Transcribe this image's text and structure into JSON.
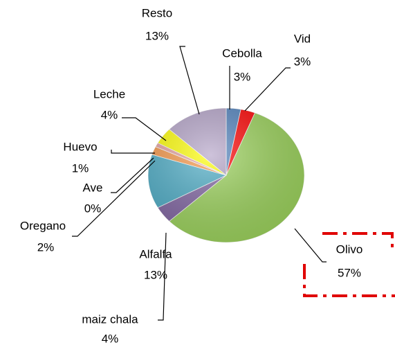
{
  "chart_data": {
    "type": "pie",
    "categories": [
      "Cebolla",
      "Vid",
      "Olivo",
      "maiz chala",
      "Alfalfa",
      "Oregano",
      "Ave",
      "Huevo",
      "Leche",
      "Resto"
    ],
    "values": [
      3,
      3,
      57,
      4,
      13,
      2,
      0,
      1,
      4,
      13
    ],
    "value_labels": [
      "3%",
      "3%",
      "57%",
      "4%",
      "13%",
      "2%",
      "0%",
      "1%",
      "4%",
      "13%"
    ],
    "colors": [
      "#4f81bd",
      "#ff0000",
      "#9bd35a",
      "#8064a2",
      "#4bacc6",
      "#f79646",
      "#c0504d",
      "#e6a0a0",
      "#ffff00",
      "#b3a2c7"
    ]
  }
}
